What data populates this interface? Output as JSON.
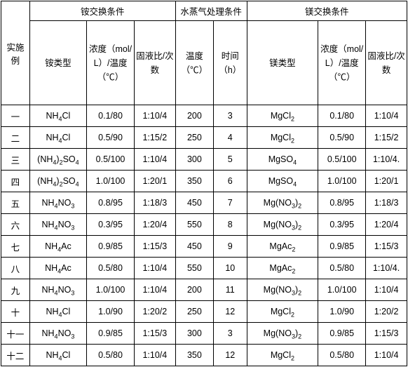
{
  "headers": {
    "group1": "铵交换条件",
    "group2": "水蒸气处理条件",
    "group3": "镁交换条件",
    "example": "实施例",
    "ammType": "铵类型",
    "conc": "浓度（mol/L）/温度（℃）",
    "ratio": "固液比/次数",
    "temp": "温度（℃）",
    "time": "时间（h）",
    "mgType": "镁类型",
    "mgConc": "浓度（mol/L）/温度（℃）",
    "mgRatio": "固液比/次数"
  },
  "rows": [
    {
      "ex": "一",
      "at": "NH4Cl",
      "c": "0.1/80",
      "r": "1:10/4",
      "t": "200",
      "h": "3",
      "mt": "MgCl2",
      "mc": "0.1/80",
      "mr": "1:10/4"
    },
    {
      "ex": "二",
      "at": "NH4Cl",
      "c": "0.5/90",
      "r": "1:15/2",
      "t": "250",
      "h": "4",
      "mt": "MgCl2",
      "mc": "0.5/90",
      "mr": "1:15/2"
    },
    {
      "ex": "三",
      "at": "(NH4)2SO4",
      "c": "0.5/100",
      "r": "1:10/4",
      "t": "300",
      "h": "5",
      "mt": "MgSO4",
      "mc": "0.5/100",
      "mr": "1:10/4."
    },
    {
      "ex": "四",
      "at": "(NH4)2SO4",
      "c": "1.0/100",
      "r": "1:20/1",
      "t": "350",
      "h": "6",
      "mt": "MgSO4",
      "mc": "1.0/100",
      "mr": "1:20/1"
    },
    {
      "ex": "五",
      "at": "NH4NO3",
      "c": "0.8/95",
      "r": "1:18/3",
      "t": "450",
      "h": "7",
      "mt": "Mg(NO3)2",
      "mc": "0.8/95",
      "mr": "1:18/3"
    },
    {
      "ex": "六",
      "at": "NH4NO3",
      "c": "0.3/95",
      "r": "1:20/4",
      "t": "550",
      "h": "8",
      "mt": "Mg(NO3)2",
      "mc": "0.3/95",
      "mr": "1:20/4"
    },
    {
      "ex": "七",
      "at": "NH4Ac",
      "c": "0.9/85",
      "r": "1:15/3",
      "t": "450",
      "h": "9",
      "mt": "MgAc2",
      "mc": "0.9/85",
      "mr": "1:15/3"
    },
    {
      "ex": "八",
      "at": "NH4Ac",
      "c": "0.5/80",
      "r": "1:10/4",
      "t": "550",
      "h": "10",
      "mt": "MgAc2",
      "mc": "0.5/80",
      "mr": "1:10/4."
    },
    {
      "ex": "九",
      "at": "NH4NO3",
      "c": "1.0/100",
      "r": "1:10/4",
      "t": "200",
      "h": "11",
      "mt": "Mg(NO3)2",
      "mc": "1.0/100",
      "mr": "1:10/4"
    },
    {
      "ex": "十",
      "at": "NH4Cl",
      "c": "1.0/90",
      "r": "1:20/2",
      "t": "250",
      "h": "12",
      "mt": "MgCl2",
      "mc": "1.0/90",
      "mr": "1:20/2"
    },
    {
      "ex": "十一",
      "at": "NH4NO3",
      "c": "0.9/85",
      "r": "1:15/3",
      "t": "300",
      "h": "3",
      "mt": "Mg(NO3)2",
      "mc": "0.9/85",
      "mr": "1:15/3"
    },
    {
      "ex": "十二",
      "at": "NH4Cl",
      "c": "0.5/80",
      "r": "1:10/4",
      "t": "350",
      "h": "12",
      "mt": "MgCl2",
      "mc": "0.5/80",
      "mr": "1:10/4"
    }
  ]
}
